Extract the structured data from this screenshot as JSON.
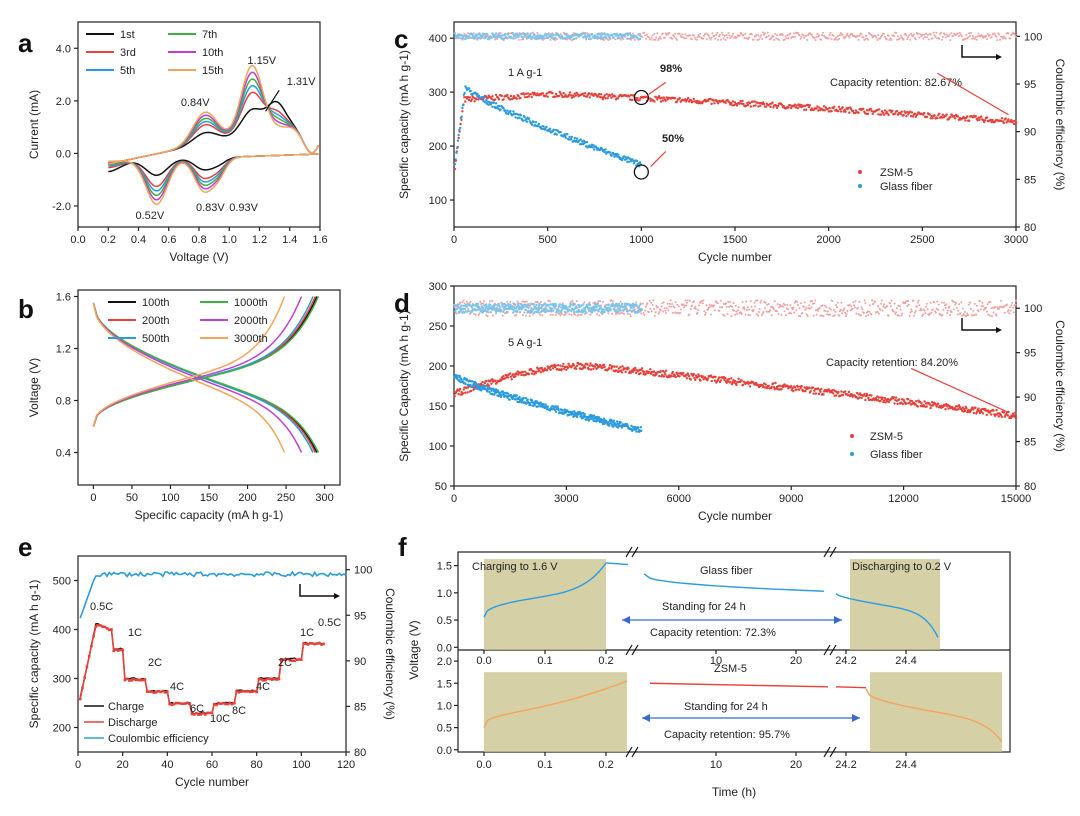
{
  "colors": {
    "red": "#e8413a",
    "blue": "#2b9be0",
    "pink": "#f2a0a0",
    "lightblue": "#7cc4ee",
    "orange": "#f4a45a",
    "box": "#c8c08a",
    "black": "#111111",
    "green": "#40b040",
    "magenta": "#c040d0",
    "palered": "#f08080"
  },
  "panel_labels": {
    "a": "a",
    "b": "b",
    "c": "c",
    "d": "d",
    "e": "e",
    "f": "f"
  },
  "chart_data": [
    {
      "id": "a",
      "type": "line",
      "xlabel": "Voltage (V)",
      "ylabel": "Current (mA)",
      "xlim": [
        0,
        1.6
      ],
      "ylim": [
        -2.8,
        5.0
      ],
      "xticks": [
        "0.0",
        "0.2",
        "0.4",
        "0.6",
        "0.8",
        "1.0",
        "1.2",
        "1.4",
        "1.6"
      ],
      "yticks": [
        "-2.0",
        "0.0",
        "2.0",
        "4.0"
      ],
      "series": [
        {
          "name": "1st",
          "color": "black",
          "scale": 0.35
        },
        {
          "name": "3rd",
          "color": "red",
          "scale": 0.6
        },
        {
          "name": "5th",
          "color": "blue",
          "scale": 0.7
        },
        {
          "name": "7th",
          "color": "green",
          "scale": 0.8
        },
        {
          "name": "10th",
          "color": "magenta",
          "scale": 0.9
        },
        {
          "name": "15th",
          "color": "orange",
          "scale": 1.0
        }
      ],
      "legend": [
        [
          "1st",
          "7th"
        ],
        [
          "3rd",
          "10th"
        ],
        [
          "5th",
          "15th"
        ]
      ],
      "annotations": [
        {
          "text": "1.15V",
          "x": 1.12,
          "y": 3.4
        },
        {
          "text": "1.31V",
          "x": 1.38,
          "y": 2.6
        },
        {
          "text": "0.84V",
          "x": 0.68,
          "y": 1.8
        },
        {
          "text": "0.52V",
          "x": 0.38,
          "y": -2.5
        },
        {
          "text": "0.83V",
          "x": 0.78,
          "y": -2.2
        },
        {
          "text": "0.93V",
          "x": 1.0,
          "y": -2.2
        }
      ]
    },
    {
      "id": "b",
      "type": "line",
      "xlabel": "Specific capacity  (mA h g-1)",
      "ylabel": "Voltage (V)",
      "xlim": [
        -20,
        320
      ],
      "ylim": [
        0.15,
        1.65
      ],
      "xticks": [
        "0",
        "50",
        "100",
        "150",
        "200",
        "250",
        "300"
      ],
      "yticks": [
        "0.4",
        "0.8",
        "1.2",
        "1.6"
      ],
      "series": [
        {
          "name": "100th",
          "color": "black",
          "cap": 290
        },
        {
          "name": "200th",
          "color": "red",
          "cap": 288
        },
        {
          "name": "500th",
          "color": "blue",
          "cap": 285
        },
        {
          "name": "1000th",
          "color": "green",
          "cap": 292
        },
        {
          "name": "2000th",
          "color": "magenta",
          "cap": 270
        },
        {
          "name": "3000th",
          "color": "orange",
          "cap": 248
        }
      ],
      "legend": [
        [
          "100th",
          "1000th"
        ],
        [
          "200th",
          "2000th"
        ],
        [
          "500th",
          "3000th"
        ]
      ]
    },
    {
      "id": "c",
      "type": "scatter",
      "xlabel": "Cycle number",
      "ylabel": "Specific capacity  (mA h g-1)",
      "y2label": "Coulombic efficiency (%)",
      "xlim": [
        0,
        3000
      ],
      "ylim": [
        50,
        430
      ],
      "y2lim": [
        80,
        101.5
      ],
      "xticks": [
        "0",
        "500",
        "1000",
        "1500",
        "2000",
        "2500",
        "3000"
      ],
      "yticks": [
        "100",
        "200",
        "300",
        "400"
      ],
      "y2ticks": [
        "80",
        "85",
        "90",
        "95",
        "100"
      ],
      "series": [
        {
          "name": "ZSM-5",
          "color": "red",
          "end_cycle": 3000
        },
        {
          "name": "Glass fiber",
          "color": "blue",
          "end_cycle": 1000
        }
      ],
      "annotations": {
        "rate": "1 A g-1",
        "retention": "Capacity retention: 82.67%",
        "pct1": "98%",
        "pct2": "50%"
      }
    },
    {
      "id": "d",
      "type": "scatter",
      "xlabel": "Cycle number",
      "ylabel": "Specific Capacity  (mA h g-1)",
      "y2label": "Coulombic efficiency (%)",
      "xlim": [
        0,
        15000
      ],
      "ylim": [
        50,
        300
      ],
      "y2lim": [
        80,
        102.5
      ],
      "xticks": [
        "0",
        "3000",
        "6000",
        "9000",
        "12000",
        "15000"
      ],
      "yticks": [
        "50",
        "100",
        "150",
        "200",
        "250",
        "300"
      ],
      "y2ticks": [
        "80",
        "85",
        "90",
        "95",
        "100"
      ],
      "series": [
        {
          "name": "ZSM-5",
          "color": "red",
          "end_cycle": 15000
        },
        {
          "name": "Glass fiber",
          "color": "blue",
          "end_cycle": 5000
        }
      ],
      "annotations": {
        "rate": "5 A g-1",
        "retention": "Capacity retention: 84.20%"
      }
    },
    {
      "id": "e",
      "type": "line",
      "xlabel": "Cycle number",
      "ylabel": "Specific capacity  (mA h g-1)",
      "y2label": "Coulombic efficiency (%)",
      "xlim": [
        0,
        120
      ],
      "ylim": [
        150,
        550
      ],
      "y2lim": [
        80,
        101.5
      ],
      "xticks": [
        "0",
        "20",
        "40",
        "60",
        "80",
        "100",
        "120"
      ],
      "yticks": [
        "200",
        "300",
        "400",
        "500"
      ],
      "y2ticks": [
        "80",
        "85",
        "90",
        "95",
        "100"
      ],
      "rates": [
        {
          "label": "0.5C",
          "start": 0,
          "end": 15,
          "cap": 400
        },
        {
          "label": "1C",
          "start": 15,
          "end": 20,
          "cap": 360
        },
        {
          "label": "2C",
          "start": 20,
          "end": 30,
          "cap": 300
        },
        {
          "label": "4C",
          "start": 30,
          "end": 40,
          "cap": 275
        },
        {
          "label": "6C",
          "start": 40,
          "end": 50,
          "cap": 250
        },
        {
          "label": "10C",
          "start": 50,
          "end": 60,
          "cap": 230
        },
        {
          "label": "8C",
          "start": 60,
          "end": 70,
          "cap": 250
        },
        {
          "label": "4C",
          "start": 70,
          "end": 80,
          "cap": 275
        },
        {
          "label": "2C",
          "start": 80,
          "end": 90,
          "cap": 300
        },
        {
          "label": "1C",
          "start": 90,
          "end": 100,
          "cap": 340
        },
        {
          "label": "0.5C",
          "start": 100,
          "end": 110,
          "cap": 372
        }
      ],
      "legend": [
        "Charge",
        "Discharge",
        "Coulombic efficiency"
      ]
    },
    {
      "id": "f",
      "type": "line",
      "xlabel": "Time (h)",
      "ylabel": "Voltage (V)",
      "xticks": [
        "0.0",
        "0.1",
        "0.2",
        "10",
        "20",
        "24.2",
        "24.4"
      ],
      "top": {
        "yticks": [
          "0.0",
          "0.5",
          "1.0",
          "1.5"
        ],
        "series": "Glass fiber",
        "retention": "Capacity retention: 72.3%"
      },
      "bottom": {
        "yticks": [
          "0.0",
          "0.5",
          "1.0",
          "1.5",
          "2.0"
        ],
        "series": "ZSM-5",
        "retention": "Capacity retention: 95.7%"
      },
      "labels": {
        "charging": "Charging to 1.6 V",
        "discharging": "Discharging to 0.2 V",
        "standing": "Standing for 24 h"
      }
    }
  ]
}
